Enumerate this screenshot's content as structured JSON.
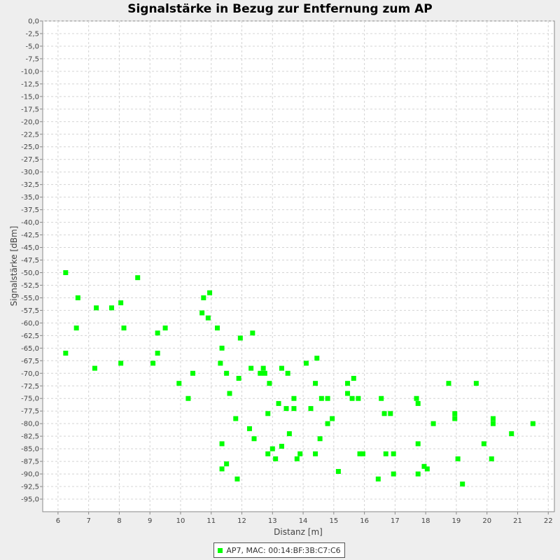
{
  "chart_data": {
    "type": "scatter",
    "title": "Signalstärke in Bezug zur Entfernung zum AP",
    "xlabel": "Distanz [m]",
    "ylabel": "Signalstärke [dBm]",
    "xlim": [
      5.5,
      22.2
    ],
    "ylim": [
      -97.5,
      0
    ],
    "xticks": [
      "6",
      "7",
      "8",
      "9",
      "10",
      "11",
      "12",
      "13",
      "14",
      "15",
      "16",
      "17",
      "18",
      "19",
      "20",
      "21",
      "22"
    ],
    "yticks": [
      "0,0",
      "-2,5",
      "-5,0",
      "-7,5",
      "-10,0",
      "-12,5",
      "-15,0",
      "-17,5",
      "-20,0",
      "-22,5",
      "-25,0",
      "-27,5",
      "-30,0",
      "-32,5",
      "-35,0",
      "-37,5",
      "-40,0",
      "-42,5",
      "-45,0",
      "-47,5",
      "-50,0",
      "-52,5",
      "-55,0",
      "-57,5",
      "-60,0",
      "-62,5",
      "-65,0",
      "-67,5",
      "-70,0",
      "-72,5",
      "-75,0",
      "-77,5",
      "-80,0",
      "-82,5",
      "-85,0",
      "-87,5",
      "-90,0",
      "-92,5",
      "-95,0"
    ],
    "grid": true,
    "legend_position": "bottom",
    "series": [
      {
        "name": "AP7, MAC: 00:14:BF:3B:C7:C6",
        "color": "#00ff00",
        "points": [
          [
            6.25,
            -50
          ],
          [
            6.25,
            -66
          ],
          [
            6.6,
            -61
          ],
          [
            6.65,
            -55
          ],
          [
            7.25,
            -57
          ],
          [
            7.2,
            -69
          ],
          [
            7.75,
            -57
          ],
          [
            8.05,
            -56
          ],
          [
            8.05,
            -68
          ],
          [
            8.15,
            -61
          ],
          [
            8.6,
            -51
          ],
          [
            9.1,
            -68
          ],
          [
            9.25,
            -62
          ],
          [
            9.25,
            -66
          ],
          [
            9.5,
            -61
          ],
          [
            9.95,
            -72
          ],
          [
            10.25,
            -75
          ],
          [
            10.4,
            -70
          ],
          [
            10.7,
            -58
          ],
          [
            10.75,
            -55
          ],
          [
            10.9,
            -59
          ],
          [
            10.95,
            -54
          ],
          [
            11.2,
            -61
          ],
          [
            11.3,
            -68
          ],
          [
            11.35,
            -65
          ],
          [
            11.5,
            -70
          ],
          [
            11.6,
            -74
          ],
          [
            11.35,
            -84
          ],
          [
            11.35,
            -89
          ],
          [
            11.5,
            -88
          ],
          [
            11.8,
            -79
          ],
          [
            11.85,
            -91
          ],
          [
            11.9,
            -71
          ],
          [
            11.95,
            -63
          ],
          [
            12.25,
            -81
          ],
          [
            12.3,
            -69
          ],
          [
            12.35,
            -62
          ],
          [
            12.4,
            -83
          ],
          [
            12.6,
            -70
          ],
          [
            12.7,
            -69
          ],
          [
            12.75,
            -70
          ],
          [
            12.85,
            -78
          ],
          [
            12.85,
            -86
          ],
          [
            12.9,
            -72
          ],
          [
            13.0,
            -85
          ],
          [
            13.1,
            -87
          ],
          [
            13.2,
            -76
          ],
          [
            13.3,
            -69
          ],
          [
            13.3,
            -84.5
          ],
          [
            13.45,
            -77
          ],
          [
            13.5,
            -70
          ],
          [
            13.55,
            -82
          ],
          [
            13.7,
            -75
          ],
          [
            13.7,
            -77
          ],
          [
            13.8,
            -87
          ],
          [
            13.9,
            -86
          ],
          [
            14.1,
            -68
          ],
          [
            14.25,
            -77
          ],
          [
            14.4,
            -72
          ],
          [
            14.4,
            -86
          ],
          [
            14.45,
            -67
          ],
          [
            14.55,
            -83
          ],
          [
            14.6,
            -75
          ],
          [
            14.8,
            -75
          ],
          [
            14.8,
            -80
          ],
          [
            14.95,
            -79
          ],
          [
            15.15,
            -89.5
          ],
          [
            15.45,
            -72
          ],
          [
            15.45,
            -74
          ],
          [
            15.6,
            -75
          ],
          [
            15.65,
            -71
          ],
          [
            15.8,
            -75
          ],
          [
            15.85,
            -86
          ],
          [
            15.95,
            -86
          ],
          [
            16.45,
            -91
          ],
          [
            16.55,
            -75
          ],
          [
            16.65,
            -78
          ],
          [
            16.7,
            -86
          ],
          [
            16.85,
            -78
          ],
          [
            16.95,
            -86
          ],
          [
            16.95,
            -90
          ],
          [
            17.7,
            -75
          ],
          [
            17.75,
            -76
          ],
          [
            17.75,
            -84
          ],
          [
            17.75,
            -90
          ],
          [
            17.95,
            -88.5
          ],
          [
            18.05,
            -89
          ],
          [
            18.25,
            -80
          ],
          [
            18.75,
            -72
          ],
          [
            18.95,
            -78
          ],
          [
            18.95,
            -79
          ],
          [
            19.05,
            -87
          ],
          [
            19.2,
            -92
          ],
          [
            19.65,
            -72
          ],
          [
            19.9,
            -84
          ],
          [
            20.15,
            -87
          ],
          [
            20.2,
            -79
          ],
          [
            20.2,
            -80
          ],
          [
            20.8,
            -82
          ],
          [
            21.5,
            -80
          ]
        ]
      }
    ]
  }
}
